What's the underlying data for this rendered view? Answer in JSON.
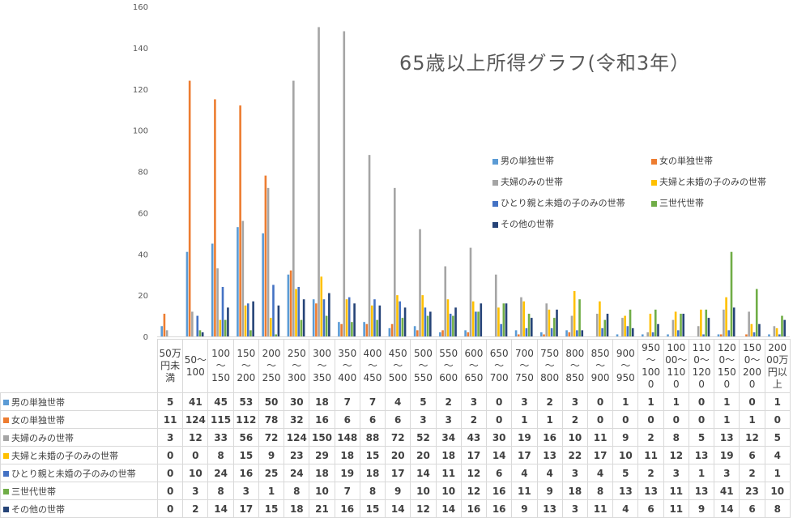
{
  "chart_data": {
    "type": "bar",
    "title": "65歳以上所得グラフ(令和3年）",
    "ylim": [
      0,
      160
    ],
    "yticks": [
      0,
      20,
      40,
      60,
      80,
      100,
      120,
      140,
      160
    ],
    "grid": false,
    "legend_position": "right",
    "categories": [
      "50万円未満",
      "50～100",
      "100～150",
      "150～200",
      "200～250",
      "250～300",
      "300～350",
      "350～400",
      "400～450",
      "450～500",
      "500～550",
      "550～600",
      "600～650",
      "650～700",
      "700～750",
      "750～800",
      "800～850",
      "850～900",
      "900～950",
      "950～1000",
      "1000～1100",
      "1100～1200",
      "1200～1500",
      "1500～2000",
      "2000万円以上"
    ],
    "series": [
      {
        "name": "男の単独世帯",
        "color": "#5b9bd5",
        "values": [
          5,
          41,
          45,
          53,
          50,
          30,
          18,
          7,
          7,
          4,
          5,
          2,
          3,
          0,
          3,
          2,
          3,
          0,
          1,
          1,
          1,
          0,
          1,
          0,
          1
        ]
      },
      {
        "name": "女の単独世帯",
        "color": "#ed7d31",
        "values": [
          11,
          124,
          115,
          112,
          78,
          32,
          16,
          6,
          6,
          6,
          3,
          3,
          2,
          0,
          1,
          1,
          2,
          0,
          0,
          0,
          0,
          0,
          1,
          1,
          0
        ]
      },
      {
        "name": "夫婦のみの世帯",
        "color": "#a5a5a5",
        "values": [
          3,
          12,
          33,
          56,
          72,
          124,
          150,
          148,
          88,
          72,
          52,
          34,
          43,
          30,
          19,
          16,
          10,
          11,
          9,
          2,
          8,
          5,
          13,
          12,
          5
        ]
      },
      {
        "name": "夫婦と未婚の子のみの世帯",
        "color": "#ffc000",
        "values": [
          0,
          0,
          8,
          15,
          9,
          23,
          29,
          18,
          15,
          20,
          20,
          18,
          17,
          14,
          17,
          13,
          22,
          17,
          10,
          11,
          12,
          13,
          19,
          6,
          4
        ]
      },
      {
        "name": "ひとり親と未婚の子のみの世帯",
        "color": "#4472c4",
        "values": [
          0,
          10,
          24,
          16,
          25,
          24,
          18,
          19,
          18,
          17,
          14,
          11,
          12,
          6,
          4,
          4,
          3,
          4,
          5,
          2,
          3,
          1,
          3,
          2,
          1
        ]
      },
      {
        "name": "三世代世帯",
        "color": "#70ad47",
        "values": [
          0,
          3,
          8,
          3,
          1,
          8,
          10,
          7,
          8,
          9,
          10,
          10,
          12,
          16,
          11,
          9,
          18,
          8,
          13,
          13,
          11,
          13,
          41,
          23,
          10
        ]
      },
      {
        "name": "その他の世帯",
        "color": "#264478",
        "values": [
          0,
          2,
          14,
          17,
          15,
          18,
          21,
          16,
          15,
          14,
          12,
          14,
          16,
          16,
          9,
          13,
          3,
          11,
          4,
          6,
          11,
          9,
          14,
          6,
          8
        ]
      }
    ]
  },
  "table": {
    "headers": [
      "50万\n円未\n満",
      "50～\n100",
      "100\n～\n150",
      "150\n～\n200",
      "200\n～\n250",
      "250\n～\n300",
      "300\n～\n350",
      "350\n～\n400",
      "400\n～\n450",
      "450\n～\n500",
      "500\n～\n550",
      "550\n～\n600",
      "600\n～\n650",
      "650\n～\n700",
      "700\n～\n750",
      "750\n～\n800",
      "800\n～\n850",
      "850\n～\n900",
      "900\n～\n950",
      "950\n～\n100\n0",
      "100\n00～\n110\n0",
      "110\n0～\n120\n0",
      "120\n0～\n150\n0",
      "150\n0～\n200\n0",
      "200\n00万\n円以\n上"
    ]
  }
}
